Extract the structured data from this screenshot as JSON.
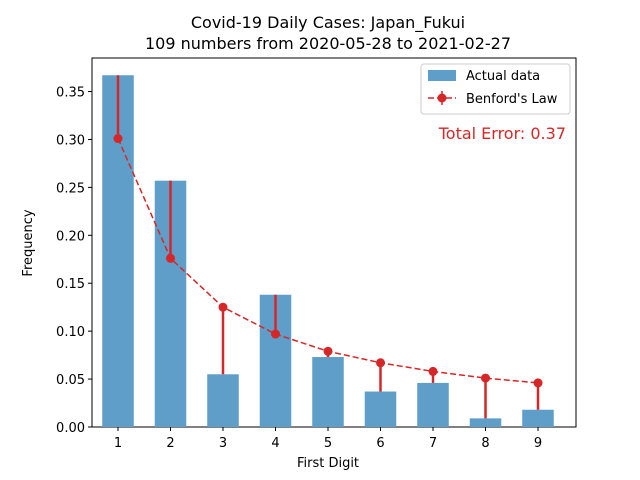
{
  "chart_data": {
    "type": "bar",
    "title": "Covid-19 Daily Cases: Japan_Fukui",
    "subtitle": "109 numbers from 2020-05-28 to 2021-02-27",
    "xlabel": "First Digit",
    "ylabel": "Frequency",
    "categories": [
      "1",
      "2",
      "3",
      "4",
      "5",
      "6",
      "7",
      "8",
      "9"
    ],
    "ylim": [
      0,
      0.385
    ],
    "yticks": [
      "0.00",
      "0.05",
      "0.10",
      "0.15",
      "0.20",
      "0.25",
      "0.30",
      "0.35"
    ],
    "series": [
      {
        "name": "Actual data",
        "kind": "bar",
        "color": "#5f9ec9",
        "values": [
          0.367,
          0.257,
          0.055,
          0.138,
          0.073,
          0.037,
          0.046,
          0.009,
          0.018
        ]
      },
      {
        "name": "Benford's Law",
        "kind": "line-dashed-markers",
        "color": "#d62728",
        "values": [
          0.301,
          0.176,
          0.125,
          0.097,
          0.079,
          0.067,
          0.058,
          0.051,
          0.046
        ]
      }
    ],
    "annotation": "Total Error: 0.37",
    "annotation_color": "#d62728",
    "legend_position": "top-right",
    "grid": false
  }
}
